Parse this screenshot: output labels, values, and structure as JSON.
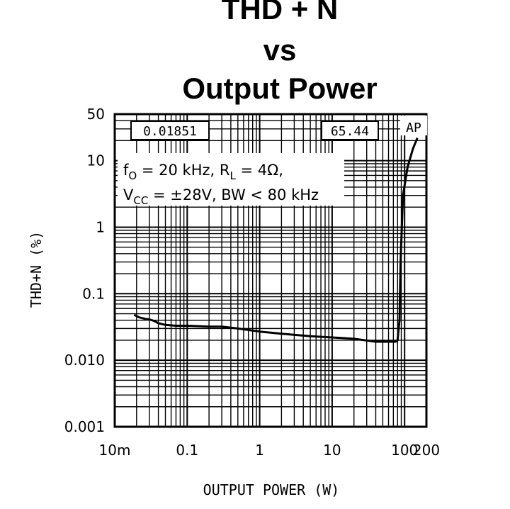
{
  "chart_data": {
    "type": "line",
    "title": [
      "THD + N",
      "vs",
      "Output Power"
    ],
    "xlabel": "OUTPUT POWER (W)",
    "ylabel": "THD+N (%)",
    "x_scale": "log",
    "y_scale": "log",
    "xlim": [
      0.01,
      200
    ],
    "ylim": [
      0.001,
      50
    ],
    "x_tick_values": [
      0.01,
      0.1,
      1,
      10,
      100,
      200
    ],
    "x_tick_labels": [
      "10m",
      "0.1",
      "1",
      "10",
      "100",
      "200"
    ],
    "y_tick_values": [
      0.001,
      0.01,
      0.1,
      1,
      10,
      50
    ],
    "y_tick_labels": [
      "0.001",
      "0.010",
      "0.1",
      "1",
      "10",
      "50"
    ],
    "grid": true,
    "readouts": {
      "left": "0.01851",
      "right": "65.44"
    },
    "corner_tag": "AP",
    "annotation": {
      "line1_parts": [
        "f",
        "O",
        " = 20 kHz, R",
        "L",
        " = 4Ω,"
      ],
      "line2_parts": [
        "V",
        "CC",
        " = ±28V, BW < 80 kHz"
      ]
    },
    "series": [
      {
        "x": [
          0.0185,
          0.022,
          0.026,
          0.03,
          0.035,
          0.04,
          0.05,
          0.07,
          0.1,
          0.2,
          0.3,
          0.5,
          1,
          2,
          5,
          10,
          20,
          40,
          60,
          75,
          80,
          85,
          88,
          95,
          110,
          130,
          150
        ],
        "y": [
          0.048,
          0.044,
          0.042,
          0.041,
          0.039,
          0.036,
          0.034,
          0.033,
          0.033,
          0.032,
          0.032,
          0.03,
          0.027,
          0.025,
          0.023,
          0.022,
          0.021,
          0.019,
          0.019,
          0.019,
          0.02,
          0.04,
          0.3,
          3,
          8,
          15,
          22
        ]
      }
    ]
  }
}
